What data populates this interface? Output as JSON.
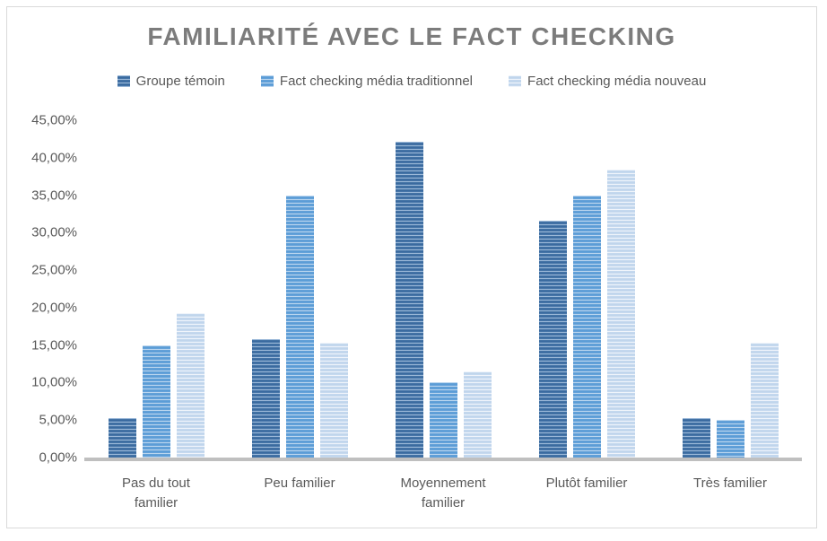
{
  "title": "FAMILIARITÉ AVEC LE FACT CHECKING",
  "colors": {
    "series_groupe_temoin": "#41719C",
    "series_fact_checking_media_traditionnel": "#5B9BD5",
    "series_fact_checking_media_nouveau": "#BDD7EE",
    "axis_line": "#BFBFBF",
    "axis_text": "#595959",
    "title_text": "#7C7C7C",
    "frame_border": "#D9D9D9"
  },
  "chart_data": {
    "type": "bar",
    "title": "FAMILIARITÉ AVEC LE FACT CHECKING",
    "categories": [
      "Pas du tout familier",
      "Peu familier",
      "Moyennement familier",
      "Plutôt familier",
      "Très familier"
    ],
    "series": [
      {
        "name": "Groupe témoin",
        "color": "#41719C",
        "values": [
          5.26,
          15.79,
          42.11,
          31.58,
          5.26
        ]
      },
      {
        "name": "Fact checking média traditionnel",
        "color": "#5B9BD5",
        "values": [
          15.0,
          35.0,
          10.0,
          35.0,
          5.0
        ]
      },
      {
        "name": "Fact checking média nouveau",
        "color": "#BDD7EE",
        "values": [
          19.23,
          15.38,
          11.54,
          38.46,
          15.38
        ]
      }
    ],
    "xlabel": "",
    "ylabel": "",
    "y_axis": {
      "min": 0,
      "max": 45,
      "step": 5,
      "tick_labels": [
        "0,00%",
        "5,00%",
        "10,00%",
        "15,00%",
        "20,00%",
        "25,00%",
        "30,00%",
        "35,00%",
        "40,00%",
        "45,00%"
      ],
      "format": "percent-fr"
    },
    "grid": false,
    "legend_position": "top"
  }
}
